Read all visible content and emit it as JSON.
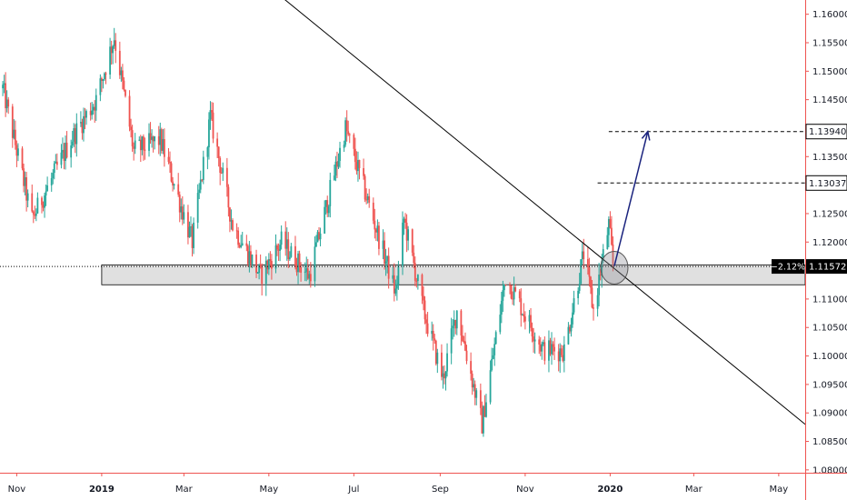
{
  "chart_data": {
    "type": "candlestick",
    "instrument_hint": "daily",
    "y_axis": {
      "position": "right",
      "ylim": [
        1.0795,
        1.1625
      ],
      "ticks": [
        "1.16000",
        "1.15500",
        "1.15000",
        "1.14500",
        "1.14000",
        "1.13500",
        "1.13000",
        "1.12500",
        "1.12000",
        "1.11500",
        "1.11000",
        "1.10500",
        "1.10000",
        "1.09500",
        "1.09000",
        "1.08500",
        "1.08000"
      ]
    },
    "x_axis": {
      "range": [
        "2018-10-20",
        "2020-05-20"
      ],
      "ticks": [
        {
          "label": "Nov",
          "date": "2018-11-01",
          "bold": false
        },
        {
          "label": "2019",
          "date": "2019-01-01",
          "bold": true
        },
        {
          "label": "Mar",
          "date": "2019-03-01",
          "bold": false
        },
        {
          "label": "May",
          "date": "2019-05-01",
          "bold": false
        },
        {
          "label": "Jul",
          "date": "2019-07-01",
          "bold": false
        },
        {
          "label": "Sep",
          "date": "2019-09-01",
          "bold": false
        },
        {
          "label": "Nov",
          "date": "2019-11-01",
          "bold": false
        },
        {
          "label": "2020",
          "date": "2020-01-01",
          "bold": true
        },
        {
          "label": "Mar",
          "date": "2020-03-01",
          "bold": false
        },
        {
          "label": "May",
          "date": "2020-05-01",
          "bold": false
        }
      ]
    },
    "price_path": [
      {
        "d": "2018-10-22",
        "v": 1.147
      },
      {
        "d": "2018-11-12",
        "v": 1.124
      },
      {
        "d": "2018-12-10",
        "v": 1.138
      },
      {
        "d": "2018-12-28",
        "v": 1.145
      },
      {
        "d": "2019-01-10",
        "v": 1.156
      },
      {
        "d": "2019-01-24",
        "v": 1.136
      },
      {
        "d": "2019-02-12",
        "v": 1.138
      },
      {
        "d": "2019-03-07",
        "v": 1.12
      },
      {
        "d": "2019-03-20",
        "v": 1.142
      },
      {
        "d": "2019-04-05",
        "v": 1.123
      },
      {
        "d": "2019-04-25",
        "v": 1.114
      },
      {
        "d": "2019-05-10",
        "v": 1.12
      },
      {
        "d": "2019-05-30",
        "v": 1.114
      },
      {
        "d": "2019-06-25",
        "v": 1.14
      },
      {
        "d": "2019-07-15",
        "v": 1.124
      },
      {
        "d": "2019-07-31",
        "v": 1.111
      },
      {
        "d": "2019-08-06",
        "v": 1.124
      },
      {
        "d": "2019-08-20",
        "v": 1.108
      },
      {
        "d": "2019-09-03",
        "v": 1.096
      },
      {
        "d": "2019-09-13",
        "v": 1.108
      },
      {
        "d": "2019-10-01",
        "v": 1.088
      },
      {
        "d": "2019-10-18",
        "v": 1.114
      },
      {
        "d": "2019-11-14",
        "v": 1.101
      },
      {
        "d": "2019-11-29",
        "v": 1.101
      },
      {
        "d": "2019-12-13",
        "v": 1.118
      },
      {
        "d": "2019-12-20",
        "v": 1.108
      },
      {
        "d": "2019-12-31",
        "v": 1.123
      },
      {
        "d": "2020-01-03",
        "v": 1.116
      }
    ],
    "trendline": {
      "from": {
        "d": "2018-12-01",
        "v": 1.195
      },
      "to": {
        "d": "2020-05-20",
        "v": 1.088
      }
    },
    "support_zone": {
      "x_from": "2019-01-01",
      "x_to": "2020-05-20",
      "y_low": 1.1125,
      "y_high": 1.116
    },
    "levels": [
      {
        "value": "1.13940",
        "start": "2019-12-31"
      },
      {
        "value": "1.13037",
        "start": "2019-12-23"
      }
    ],
    "current_price": {
      "value": "1.11572",
      "change": "−2.12%"
    },
    "annotation_arrow": {
      "from": {
        "d": "2020-01-04",
        "v": 1.1158
      },
      "to": {
        "d": "2020-01-28",
        "v": 1.1394
      }
    },
    "highlight_circle": {
      "d": "2020-01-04",
      "v": 1.1155
    },
    "colors": {
      "up": "#26a69a",
      "down": "#ef5350",
      "axis": "#ef5350",
      "arrow": "#1a237e",
      "line": "#000000",
      "zone_fill": "#e0e0e0"
    }
  }
}
